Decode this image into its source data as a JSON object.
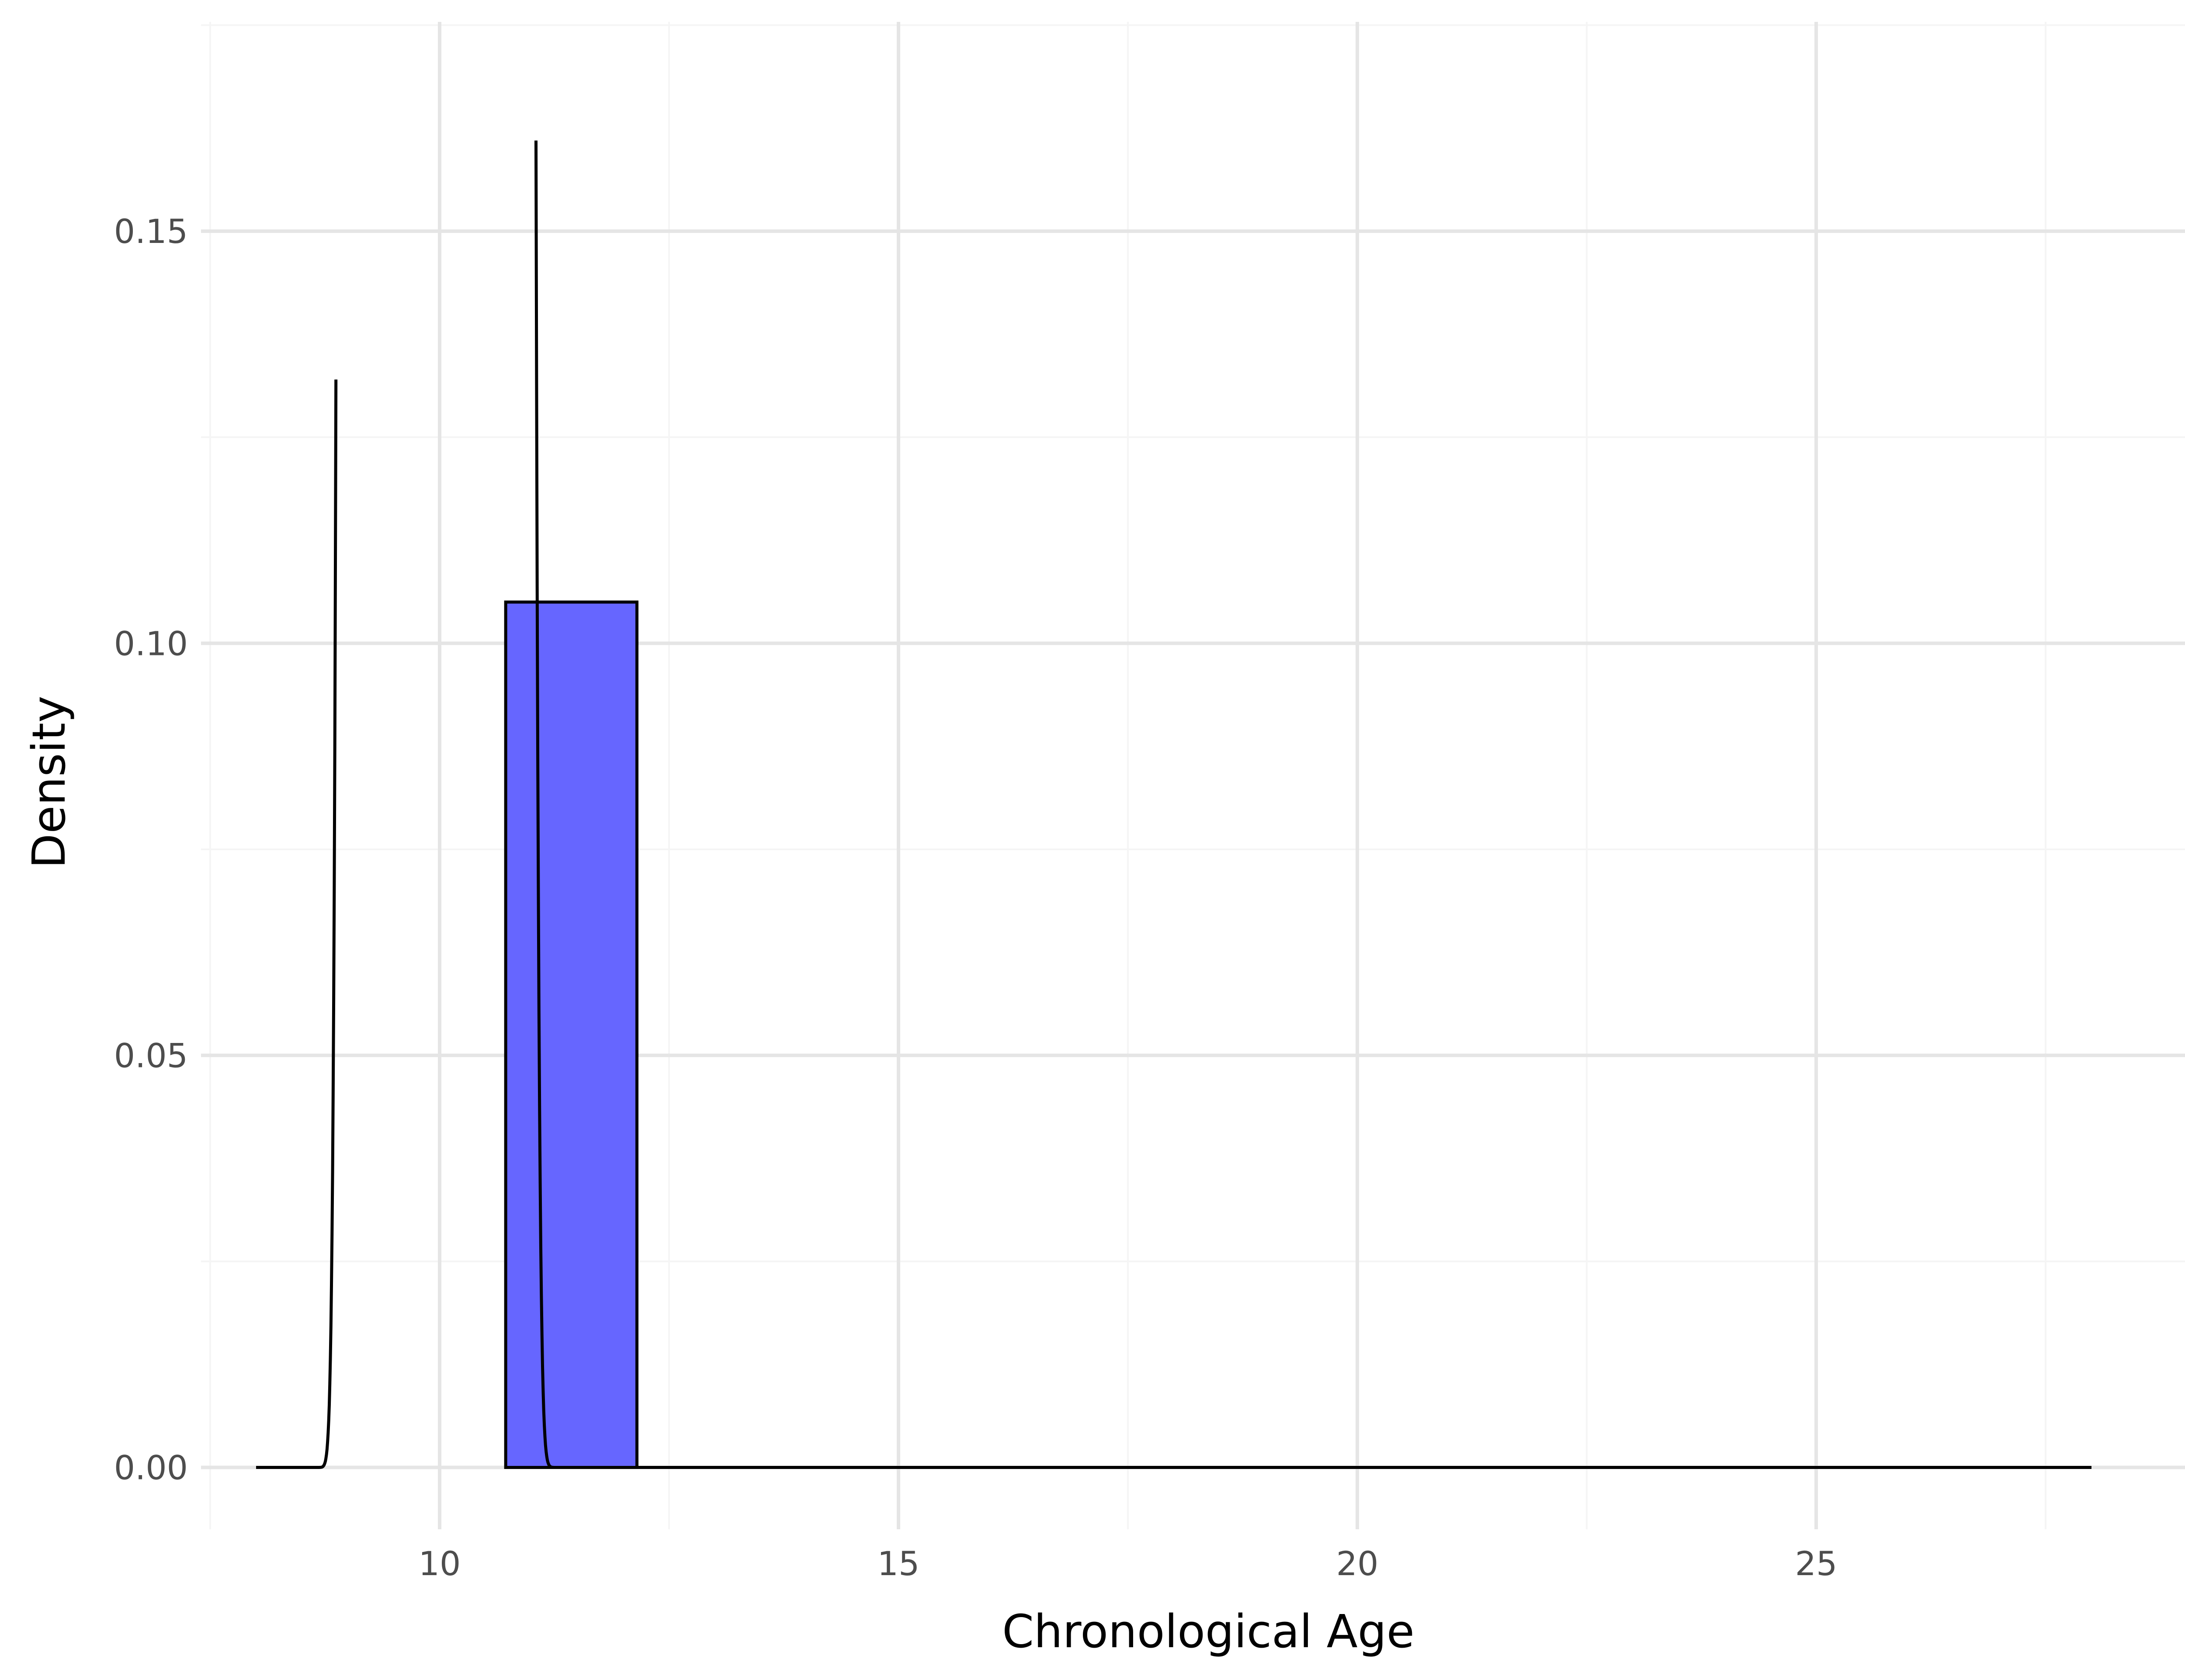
{
  "chart_data": {
    "type": "bar",
    "xlabel": "Chronological Age",
    "ylabel": "Density",
    "xlim": [
      7.4,
      29.4
    ],
    "ylim": [
      -0.0075,
      0.1754
    ],
    "x_ticks": [
      10,
      15,
      20,
      25
    ],
    "x_tick_labels": [
      "10",
      "15",
      "20",
      "25"
    ],
    "y_ticks": [
      0.0,
      0.05,
      0.1,
      0.15
    ],
    "y_tick_labels": [
      "0.00",
      "0.05",
      "0.10",
      "0.15"
    ],
    "x_minor_ticks": [
      7.5,
      12.5,
      17.5,
      22.5,
      27.5
    ],
    "y_minor_ticks": [
      0.025,
      0.075,
      0.125,
      0.175
    ],
    "grid": true,
    "bars": [
      {
        "x_start": 10.72,
        "x_end": 12.15,
        "density": 0.105,
        "color": "#6666ff",
        "edge_color": "#000000"
      }
    ],
    "density_curve": {
      "color": "#000000",
      "x_range": [
        8.0,
        28.0
      ],
      "spikes": [
        {
          "center": 8.87,
          "peak": 0.132,
          "rise_width": 0.11,
          "side": "left"
        },
        {
          "center": 11.05,
          "peak": 0.161,
          "fall_width": 0.13,
          "side": "right"
        }
      ]
    }
  }
}
